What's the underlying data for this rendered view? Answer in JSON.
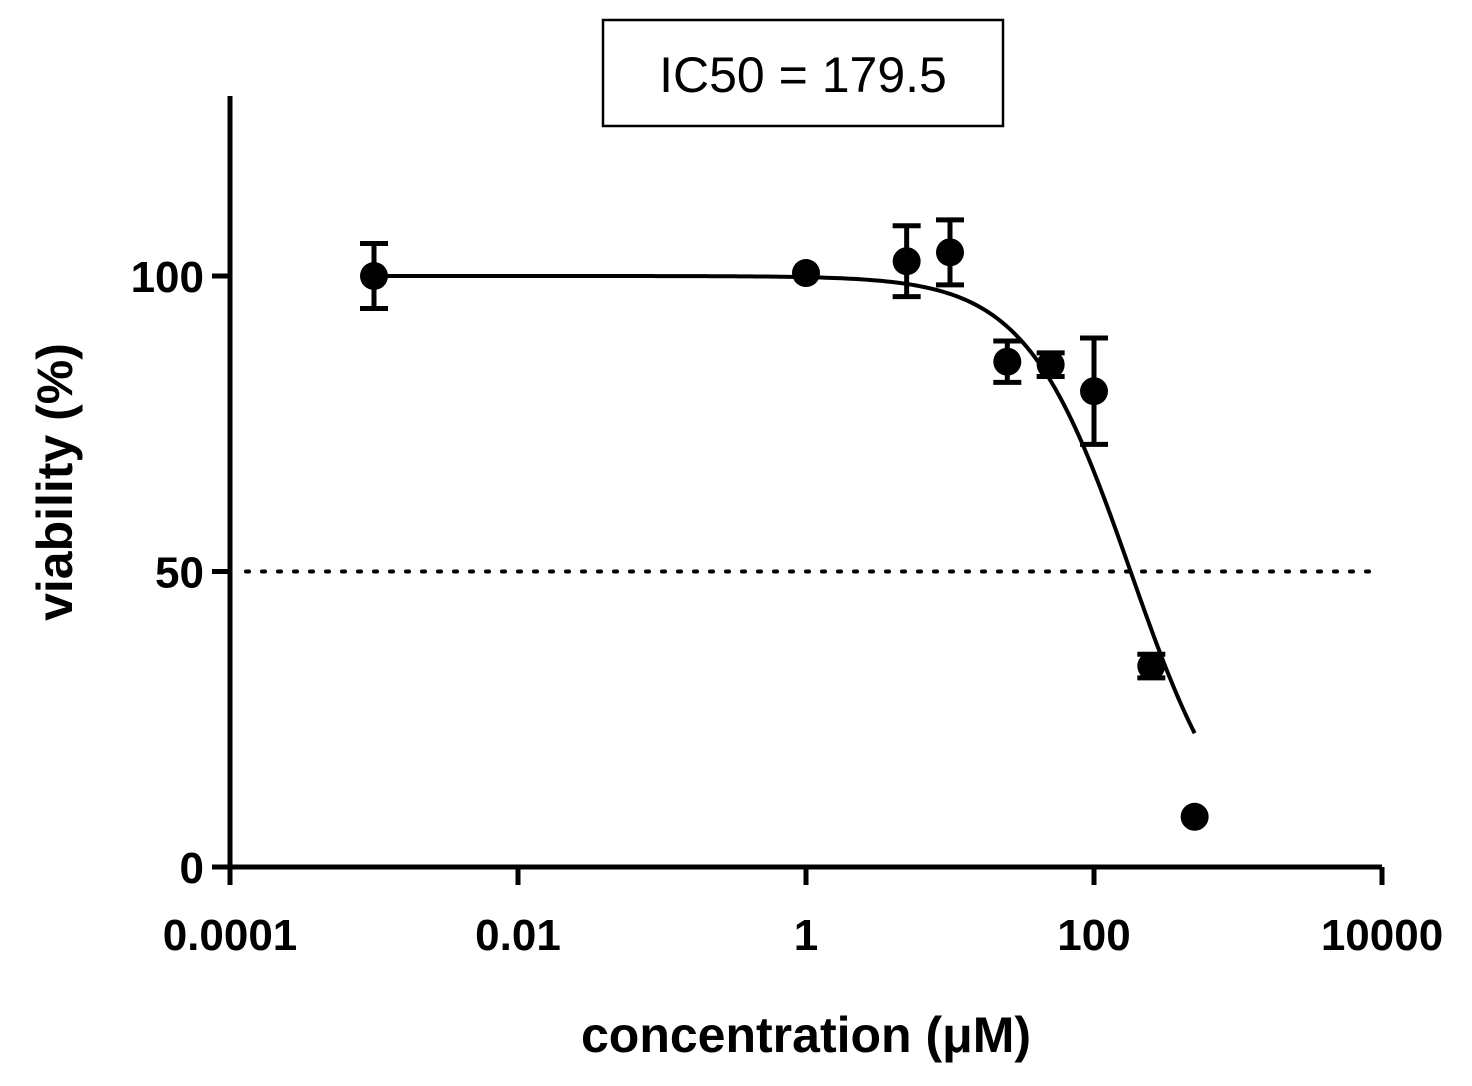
{
  "chart_data": {
    "type": "scatter",
    "annotation": "IC50 = 179.5",
    "xlabel": "concentration (μM)",
    "ylabel": "viability (%)",
    "xscale": "log",
    "xlim": [
      0.0001,
      10000
    ],
    "ylim": [
      0,
      130
    ],
    "xticks": [
      0.0001,
      0.01,
      1,
      100,
      10000
    ],
    "xtick_labels": [
      "0.0001",
      "0.01",
      "1",
      "100",
      "10000"
    ],
    "yticks": [
      0,
      50,
      100
    ],
    "ytick_labels": [
      "0",
      "50",
      "100"
    ],
    "reference_line": {
      "y": 50,
      "style": "dotted"
    },
    "points": [
      {
        "x": 0.001,
        "y": 100,
        "err": 5.5
      },
      {
        "x": 1,
        "y": 100.5,
        "err": 0
      },
      {
        "x": 5,
        "y": 102.5,
        "err": 6
      },
      {
        "x": 10,
        "y": 104,
        "err": 5.5
      },
      {
        "x": 25,
        "y": 85.5,
        "err": 3.5
      },
      {
        "x": 50,
        "y": 85,
        "err": 2
      },
      {
        "x": 100,
        "y": 80.5,
        "err": 9
      },
      {
        "x": 250,
        "y": 34,
        "err": 2
      },
      {
        "x": 500,
        "y": 8.5,
        "err": 0
      }
    ],
    "fit": {
      "type": "sigmoid",
      "top": 100,
      "bottom": 0,
      "ic50": 179.5,
      "hill": 1.2,
      "x_start": 0.001,
      "x_end": 500
    }
  }
}
